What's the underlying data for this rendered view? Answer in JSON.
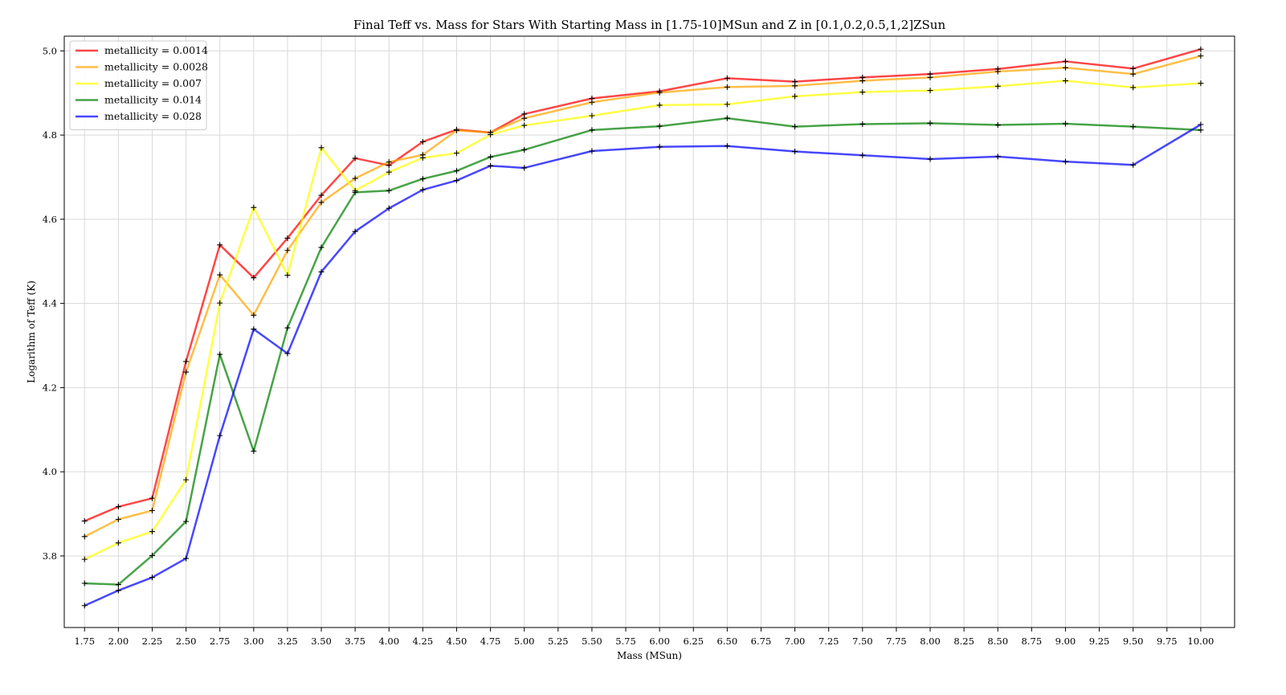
{
  "chart_data": {
    "type": "line",
    "title": "Final Teff vs. Mass for Stars With Starting Mass in [1.75-10]MSun and Z in [0.1,0.2,0.5,1,2]ZSun",
    "xlabel": "Mass (MSun)",
    "ylabel": "Logarithm of Teff (K)",
    "xlim": [
      1.6,
      10.25
    ],
    "ylim": [
      3.63,
      5.035
    ],
    "grid": true,
    "legend_position": "top-left",
    "x_ticks": [
      "1.75",
      "2.00",
      "2.25",
      "2.50",
      "2.75",
      "3.00",
      "3.25",
      "3.50",
      "3.75",
      "4.00",
      "4.25",
      "4.50",
      "4.75",
      "5.00",
      "5.25",
      "5.50",
      "5.75",
      "6.00",
      "6.25",
      "6.50",
      "6.75",
      "7.00",
      "7.25",
      "7.50",
      "7.75",
      "8.00",
      "8.25",
      "8.50",
      "8.75",
      "9.00",
      "9.25",
      "9.50",
      "9.75",
      "10.00"
    ],
    "y_ticks": [
      "3.8",
      "4.0",
      "4.2",
      "4.4",
      "4.6",
      "4.8",
      "5.0"
    ],
    "x": [
      1.75,
      2.0,
      2.25,
      2.5,
      2.75,
      3.0,
      3.25,
      3.5,
      3.75,
      4.0,
      4.25,
      4.5,
      4.75,
      5.0,
      5.5,
      6.0,
      6.5,
      7.0,
      7.5,
      8.0,
      8.5,
      9.0,
      9.5,
      10.0
    ],
    "series": [
      {
        "name": "metallicity = 0.0014",
        "color": "#ff0000",
        "values": [
          3.883,
          3.917,
          3.937,
          4.262,
          4.539,
          4.461,
          4.555,
          4.657,
          4.745,
          4.728,
          4.784,
          4.813,
          4.806,
          4.85,
          4.887,
          4.904,
          4.935,
          4.927,
          4.937,
          4.945,
          4.957,
          4.975,
          4.958,
          5.004
        ]
      },
      {
        "name": "metallicity = 0.0028",
        "color": "#ffa500",
        "values": [
          3.846,
          3.887,
          3.908,
          4.237,
          4.468,
          4.372,
          4.526,
          4.64,
          4.697,
          4.736,
          4.753,
          4.811,
          4.806,
          4.84,
          4.878,
          4.901,
          4.914,
          4.917,
          4.929,
          4.937,
          4.951,
          4.96,
          4.945,
          4.988
        ]
      },
      {
        "name": "metallicity = 0.007",
        "color": "#ffff00",
        "values": [
          3.792,
          3.831,
          3.858,
          3.981,
          4.401,
          4.628,
          4.467,
          4.77,
          4.668,
          4.712,
          4.746,
          4.757,
          4.801,
          4.823,
          4.846,
          4.871,
          4.873,
          4.892,
          4.902,
          4.906,
          4.916,
          4.929,
          4.913,
          4.923
        ]
      },
      {
        "name": "metallicity = 0.014",
        "color": "#008000",
        "values": [
          3.735,
          3.732,
          3.801,
          3.882,
          4.279,
          4.049,
          4.342,
          4.533,
          4.664,
          4.668,
          4.696,
          4.715,
          4.748,
          4.765,
          4.812,
          4.821,
          4.84,
          4.82,
          4.826,
          4.828,
          4.824,
          4.827,
          4.82,
          4.812
        ]
      },
      {
        "name": "metallicity = 0.028",
        "color": "#0000ff",
        "values": [
          3.682,
          3.718,
          3.749,
          3.794,
          4.086,
          4.339,
          4.281,
          4.475,
          4.571,
          4.626,
          4.67,
          4.692,
          4.727,
          4.722,
          4.762,
          4.772,
          4.774,
          4.761,
          4.752,
          4.743,
          4.749,
          4.737,
          4.729,
          4.825
        ]
      }
    ]
  }
}
